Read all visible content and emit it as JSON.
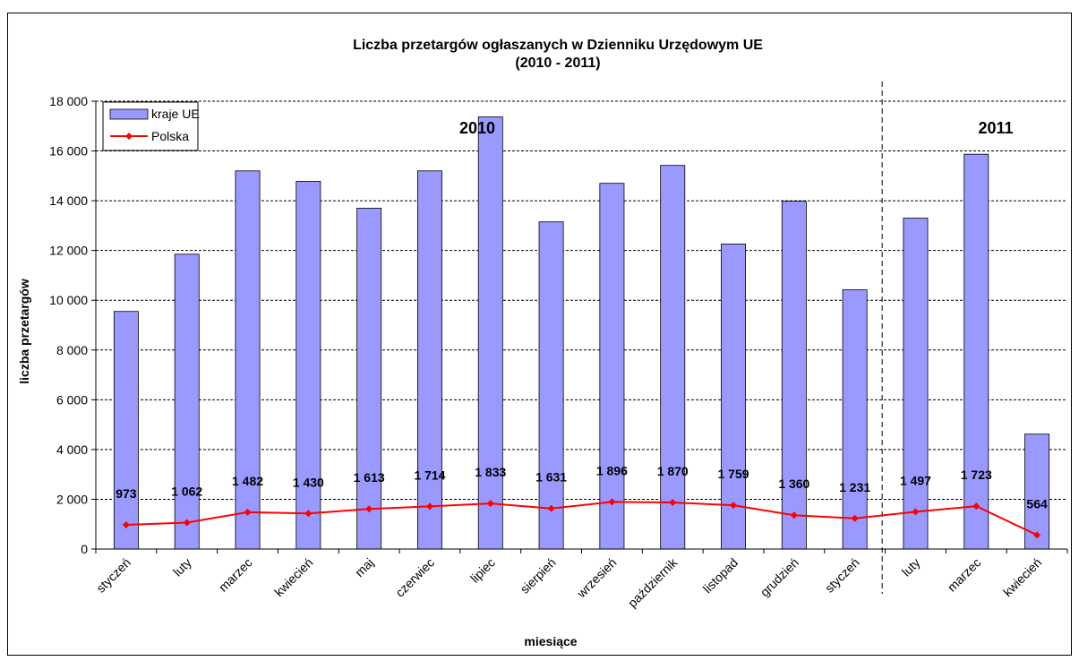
{
  "chart_data": {
    "type": "bar",
    "title": "Liczba przetargów ogłaszanych w Dzienniku Urzędowym UE",
    "subtitle": "(2010 - 2011)",
    "xlabel": "miesiące",
    "ylabel": "liczba przetargów",
    "ylim": [
      0,
      18000
    ],
    "yticks": [
      "0",
      "2 000",
      "4 000",
      "6 000",
      "8 000",
      "10 000",
      "12 000",
      "14 000",
      "16 000",
      "18 000"
    ],
    "grid": true,
    "legend_position": "top-left",
    "categories": [
      "styczeń",
      "luty",
      "marzec",
      "kwiecień",
      "maj",
      "czerwiec",
      "lipiec",
      "sierpień",
      "wrzesień",
      "październik",
      "listopad",
      "grudzień",
      "styczeń",
      "luty",
      "marzec",
      "kwiecień"
    ],
    "series": [
      {
        "name": "kraje UE",
        "type": "bar",
        "color": "#9999ff",
        "values": [
          9550,
          11850,
          15200,
          14780,
          13700,
          15200,
          17370,
          13150,
          14700,
          15420,
          12260,
          13980,
          10420,
          13300,
          15870,
          4620
        ]
      },
      {
        "name": "Polska",
        "type": "line",
        "color": "#ff0000",
        "values": [
          973,
          1062,
          1482,
          1430,
          1613,
          1714,
          1833,
          1631,
          1896,
          1870,
          1759,
          1360,
          1231,
          1497,
          1723,
          564
        ],
        "labels": [
          "973",
          "1 062",
          "1 482",
          "1 430",
          "1 613",
          "1 714",
          "1 833",
          "1 631",
          "1 896",
          "1 870",
          "1 759",
          "1 360",
          "1 231",
          "1 497",
          "1 723",
          "564"
        ]
      }
    ],
    "annotations": [
      "2010",
      "2011"
    ],
    "separator_after_index": 12
  }
}
